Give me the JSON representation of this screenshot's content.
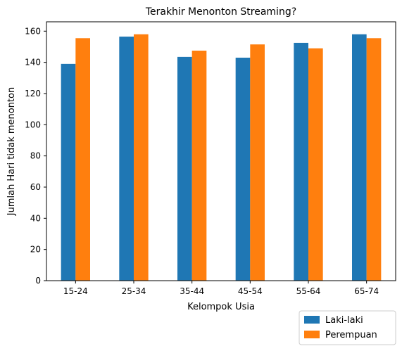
{
  "chart_data": {
    "type": "bar",
    "title": "Terakhir Menonton Streaming?",
    "xlabel": "Kelompok Usia",
    "ylabel": "Jumlah Hari tidak menonton",
    "categories": [
      "15-24",
      "25-34",
      "35-44",
      "45-54",
      "55-64",
      "65-74"
    ],
    "series": [
      {
        "name": "Laki-laki",
        "color": "#1f77b4",
        "values": [
          139,
          156.5,
          143.5,
          143,
          152.5,
          158
        ]
      },
      {
        "name": "Perempuan",
        "color": "#ff7f0e",
        "values": [
          155.5,
          158,
          147.5,
          151.5,
          149,
          155.5
        ]
      }
    ],
    "ylim": [
      0,
      166
    ],
    "yticks": [
      0,
      20,
      40,
      60,
      80,
      100,
      120,
      140,
      160
    ],
    "grid": false,
    "legend_position": "below-right"
  }
}
